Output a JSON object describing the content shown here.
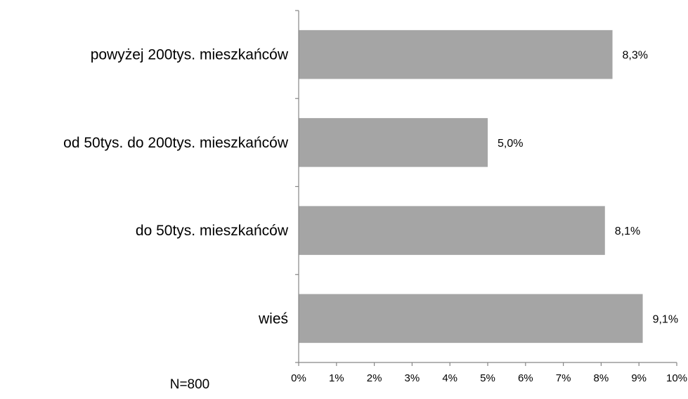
{
  "chart_data": {
    "type": "bar",
    "orientation": "horizontal",
    "categories": [
      "powyżej 200tys. mieszkańców",
      "od 50tys. do 200tys. mieszkańców",
      "do 50tys. mieszkańców",
      "wieś"
    ],
    "values": [
      8.3,
      5.0,
      8.1,
      9.1
    ],
    "value_labels": [
      "8,3%",
      "5,0%",
      "8,1%",
      "9,1%"
    ],
    "xlim": [
      0,
      10
    ],
    "x_ticks": [
      "0%",
      "1%",
      "2%",
      "3%",
      "4%",
      "5%",
      "6%",
      "7%",
      "8%",
      "9%",
      "10%"
    ],
    "grid": false,
    "legend": "none",
    "bar_color": "#a5a5a5",
    "axis_color": "#868686",
    "note": "N=800"
  }
}
